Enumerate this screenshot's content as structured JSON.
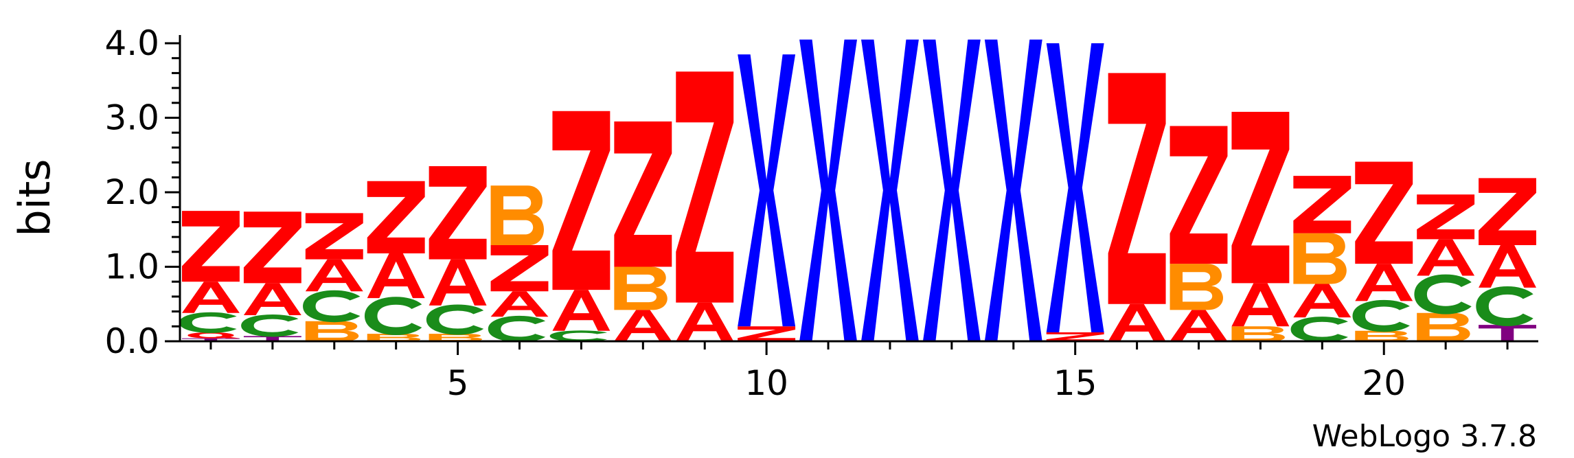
{
  "chart_data": {
    "type": "sequence-logo",
    "ylabel": "bits",
    "ylim": [
      0,
      4.0
    ],
    "yticks": [
      "0.0",
      "1.0",
      "2.0",
      "3.0",
      "4.0"
    ],
    "xticks": [
      5,
      10,
      15,
      20
    ],
    "positions": [
      {
        "pos": 1,
        "stack": [
          [
            "T",
            0.04
          ],
          [
            "Q",
            0.08
          ],
          [
            "C",
            0.26
          ],
          [
            "A",
            0.42
          ],
          [
            "Z",
            0.95
          ]
        ]
      },
      {
        "pos": 2,
        "stack": [
          [
            "T",
            0.07
          ],
          [
            "C",
            0.28
          ],
          [
            "A",
            0.43
          ],
          [
            "Z",
            0.96
          ]
        ]
      },
      {
        "pos": 3,
        "stack": [
          [
            "B",
            0.27
          ],
          [
            "C",
            0.4
          ],
          [
            "A",
            0.43
          ],
          [
            "Z",
            0.62
          ]
        ]
      },
      {
        "pos": 4,
        "stack": [
          [
            "B",
            0.1
          ],
          [
            "C",
            0.48
          ],
          [
            "A",
            0.6
          ],
          [
            "Z",
            0.97
          ]
        ]
      },
      {
        "pos": 5,
        "stack": [
          [
            "B",
            0.1
          ],
          [
            "C",
            0.38
          ],
          [
            "A",
            0.62
          ],
          [
            "Z",
            1.25
          ]
        ]
      },
      {
        "pos": 6,
        "stack": [
          [
            "C",
            0.33
          ],
          [
            "A",
            0.34
          ],
          [
            "Z",
            0.62
          ],
          [
            "B",
            0.8
          ]
        ]
      },
      {
        "pos": 7,
        "stack": [
          [
            "C",
            0.14
          ],
          [
            "A",
            0.55
          ],
          [
            "Z",
            2.4
          ]
        ]
      },
      {
        "pos": 8,
        "stack": [
          [
            "A",
            0.42
          ],
          [
            "B",
            0.58
          ],
          [
            "Z",
            1.95
          ]
        ]
      },
      {
        "pos": 9,
        "stack": [
          [
            "A",
            0.52
          ],
          [
            "Z",
            3.1
          ]
        ]
      },
      {
        "pos": 10,
        "stack": [
          [
            "Z",
            0.2
          ],
          [
            "X",
            3.65
          ]
        ]
      },
      {
        "pos": 11,
        "stack": [
          [
            "X",
            4.05
          ]
        ]
      },
      {
        "pos": 12,
        "stack": [
          [
            "X",
            4.05
          ]
        ]
      },
      {
        "pos": 13,
        "stack": [
          [
            "X",
            4.05
          ]
        ]
      },
      {
        "pos": 14,
        "stack": [
          [
            "X",
            4.05
          ]
        ]
      },
      {
        "pos": 15,
        "stack": [
          [
            "Z",
            0.12
          ],
          [
            "X",
            3.88
          ]
        ]
      },
      {
        "pos": 16,
        "stack": [
          [
            "A",
            0.5
          ],
          [
            "Z",
            3.1
          ]
        ]
      },
      {
        "pos": 17,
        "stack": [
          [
            "A",
            0.42
          ],
          [
            "B",
            0.62
          ],
          [
            "Z",
            1.85
          ]
        ]
      },
      {
        "pos": 18,
        "stack": [
          [
            "B",
            0.2
          ],
          [
            "A",
            0.58
          ],
          [
            "Z",
            2.3
          ]
        ]
      },
      {
        "pos": 19,
        "stack": [
          [
            "C",
            0.32
          ],
          [
            "A",
            0.45
          ],
          [
            "B",
            0.68
          ],
          [
            "Z",
            0.77
          ]
        ]
      },
      {
        "pos": 20,
        "stack": [
          [
            "B",
            0.14
          ],
          [
            "C",
            0.4
          ],
          [
            "A",
            0.5
          ],
          [
            "Z",
            1.37
          ]
        ]
      },
      {
        "pos": 21,
        "stack": [
          [
            "B",
            0.38
          ],
          [
            "C",
            0.5
          ],
          [
            "A",
            0.49
          ],
          [
            "Z",
            0.6
          ]
        ]
      },
      {
        "pos": 22,
        "stack": [
          [
            "T",
            0.22
          ],
          [
            "C",
            0.5
          ],
          [
            "A",
            0.57
          ],
          [
            "Z",
            0.9
          ]
        ]
      }
    ],
    "colors": {
      "Z": "#ff0000",
      "A": "#ff0000",
      "Q": "#ff0000",
      "X": "#0000ff",
      "B": "#ff8c00",
      "C": "#1a8c1a",
      "T": "#800080"
    }
  },
  "footer": {
    "credit": "WebLogo 3.7.8"
  }
}
